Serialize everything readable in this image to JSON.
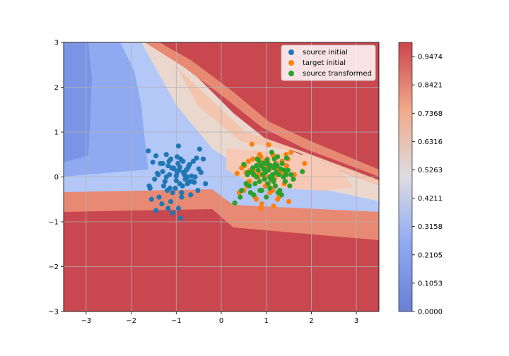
{
  "chart_data": {
    "type": "scatter",
    "title": "",
    "xlabel": "",
    "ylabel": "",
    "xlim": [
      -3.5,
      3.5
    ],
    "ylim": [
      -3,
      3
    ],
    "x_ticks": [
      -3,
      -2,
      -1,
      0,
      1,
      2,
      3
    ],
    "y_ticks": [
      -3,
      -2,
      -1,
      0,
      1,
      2,
      3
    ],
    "x_tick_labels": [
      "−3",
      "−2",
      "−1",
      "0",
      "1",
      "2",
      "3"
    ],
    "y_tick_labels": [
      "−3",
      "−2",
      "−1",
      "0",
      "1",
      "2",
      "3"
    ],
    "grid": true,
    "legend_position": "top-right",
    "background": "filled contour of classifier probability (0 = blue, 1 = red) over the plane",
    "colorbar": {
      "colormap": "coolwarm",
      "range": [
        0,
        1
      ],
      "tick_labels": [
        "0.0000",
        "0.1053",
        "0.2105",
        "0.3158",
        "0.4211",
        "0.5263",
        "0.6316",
        "0.7368",
        "0.8421",
        "0.9474"
      ]
    },
    "series": [
      {
        "name": "source initial",
        "color": "#1f77b4",
        "x": [
          -1.62,
          -1.52,
          -1.45,
          -1.4,
          -1.3,
          -1.28,
          -1.22,
          -1.18,
          -1.12,
          -1.08,
          -1.05,
          -0.98,
          -0.95,
          -0.92,
          -0.88,
          -0.85,
          -0.82,
          -0.78,
          -0.75,
          -0.7,
          -0.66,
          -0.6,
          -0.55,
          -0.5,
          -0.45,
          -1.55,
          -1.48,
          -1.35,
          -1.25,
          -1.15,
          -1.02,
          -0.9,
          -0.8,
          -0.72,
          -0.62,
          -0.52,
          -1.6,
          -1.42,
          -1.2,
          -1.1,
          -1.0,
          -0.94,
          -0.86,
          -0.76,
          -0.68,
          -0.58,
          -1.38,
          -1.14,
          -0.96,
          -0.84,
          -0.7,
          -1.22,
          -1.06,
          -0.92,
          -0.78,
          -1.3,
          -1.0,
          -0.88,
          -0.64,
          -1.12,
          -0.95,
          -1.18,
          -1.45,
          -0.4,
          -0.48,
          -0.35,
          -1.58,
          -1.32,
          -0.9,
          -1.08,
          -0.74,
          -0.98,
          -1.16
        ],
        "y": [
          0.58,
          0.33,
          0.47,
          0.05,
          0.12,
          -0.2,
          0.5,
          0.25,
          0.4,
          -0.35,
          0.18,
          0.1,
          0.69,
          0.22,
          -0.45,
          0.35,
          0.05,
          0.15,
          -0.15,
          0.28,
          0.02,
          -0.12,
          0.42,
          0.18,
          0.1,
          -0.5,
          -0.05,
          0.3,
          -0.1,
          0.05,
          -0.25,
          0.4,
          -0.05,
          0.25,
          0.35,
          -0.3,
          -0.2,
          0.08,
          -0.3,
          0.2,
          -0.08,
          0.15,
          -0.2,
          0.0,
          -0.4,
          0.0,
          -0.45,
          -0.25,
          0.3,
          0.1,
          -0.1,
          0.0,
          0.2,
          -0.15,
          0.15,
          0.3,
          0.02,
          -0.35,
          -0.1,
          -0.55,
          -0.7,
          -0.7,
          -0.75,
          0.4,
          0.62,
          -0.15,
          -0.25,
          -0.6,
          -0.92,
          -0.8,
          0.2,
          0.45,
          0.35
        ]
      },
      {
        "name": "target initial",
        "color": "#ff7f0e",
        "x": [
          0.35,
          0.45,
          0.5,
          0.55,
          0.6,
          0.62,
          0.68,
          0.72,
          0.75,
          0.8,
          0.85,
          0.88,
          0.92,
          0.95,
          0.98,
          1.02,
          1.05,
          1.08,
          1.12,
          1.15,
          1.18,
          1.22,
          1.25,
          1.3,
          1.35,
          1.4,
          1.45,
          1.5,
          1.55,
          1.62,
          1.85,
          0.4,
          0.58,
          0.7,
          0.82,
          0.9,
          1.0,
          1.1,
          1.2,
          1.28,
          1.38,
          1.48,
          0.65,
          0.78,
          0.96,
          1.06,
          1.16,
          1.26,
          1.36,
          0.52,
          0.88,
          1.02,
          1.24,
          1.44,
          0.74,
          0.94,
          1.14,
          0.84,
          1.04
        ],
        "y": [
          0.08,
          0.2,
          -0.3,
          0.1,
          0.35,
          -0.1,
          0.73,
          0.15,
          -0.45,
          0.25,
          0.5,
          -0.7,
          0.3,
          0.05,
          -0.2,
          0.4,
          0.72,
          -0.35,
          0.2,
          0.48,
          -0.05,
          0.3,
          -0.5,
          0.1,
          0.35,
          -0.15,
          0.25,
          -0.55,
          0.55,
          0.05,
          0.3,
          -0.35,
          -0.2,
          0.4,
          0.0,
          -0.6,
          0.2,
          -0.25,
          0.45,
          -0.45,
          0.1,
          0.4,
          0.15,
          -0.5,
          0.35,
          0.0,
          -0.65,
          0.15,
          0.3,
          0.25,
          0.45,
          -0.15,
          0.05,
          0.5,
          0.05,
          0.2,
          -0.3,
          0.1,
          0.3
        ]
      },
      {
        "name": "source transformed",
        "color": "#2ca02c",
        "x": [
          0.3,
          0.42,
          0.5,
          0.55,
          0.6,
          0.65,
          0.7,
          0.72,
          0.78,
          0.8,
          0.85,
          0.88,
          0.9,
          0.95,
          0.98,
          1.0,
          1.02,
          1.05,
          1.08,
          1.1,
          1.12,
          1.15,
          1.18,
          1.2,
          1.22,
          1.25,
          1.28,
          1.3,
          1.35,
          1.38,
          1.42,
          1.45,
          1.48,
          1.52,
          1.55,
          1.6,
          1.8,
          0.45,
          0.62,
          0.75,
          0.82,
          0.92,
          1.04,
          1.14,
          1.24,
          1.34,
          1.44,
          0.68,
          0.86,
          0.96,
          1.06,
          1.16,
          1.26,
          0.58,
          0.78,
          0.94,
          1.1,
          1.32,
          0.84,
          1.02,
          1.2,
          1.4,
          0.72,
          1.08,
          1.18,
          0.98
        ],
        "y": [
          -0.58,
          -0.45,
          0.28,
          -0.15,
          0.1,
          -0.35,
          0.2,
          0.05,
          0.0,
          0.4,
          -0.1,
          0.25,
          -0.3,
          0.3,
          0.1,
          -0.45,
          0.38,
          0.15,
          -0.25,
          0.25,
          0.55,
          -0.05,
          0.4,
          -0.2,
          0.1,
          0.45,
          0.05,
          -0.3,
          0.3,
          0.0,
          -0.1,
          0.42,
          0.15,
          -0.2,
          0.05,
          -0.05,
          0.12,
          -0.3,
          -0.2,
          -0.15,
          0.15,
          0.05,
          -0.15,
          0.05,
          0.25,
          -0.4,
          0.05,
          0.1,
          -0.3,
          -0.05,
          0.2,
          -0.1,
          -0.35,
          0.05,
          0.25,
          0.18,
          -0.05,
          0.18,
          0.35,
          0.3,
          0.28,
          0.15,
          -0.4,
          0.0,
          0.2,
          0.12
        ]
      }
    ]
  }
}
